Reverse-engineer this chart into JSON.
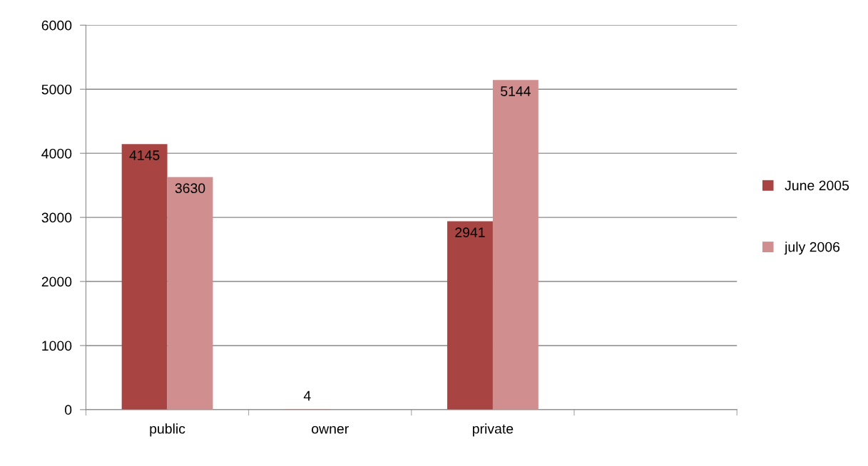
{
  "chart_data": {
    "type": "bar",
    "categories": [
      "public",
      "owner",
      "private",
      null
    ],
    "series": [
      {
        "name": "June 2005",
        "color": "#a84442",
        "values": [
          4145,
          4,
          2941,
          null
        ]
      },
      {
        "name": "july 2006",
        "color": "#d08f8e",
        "values": [
          3630,
          null,
          5144,
          null
        ]
      }
    ],
    "ylim": [
      0,
      6000
    ],
    "yticks": [
      0,
      1000,
      2000,
      3000,
      4000,
      5000,
      6000
    ],
    "grid": "y",
    "legend": "right",
    "data_labels": true
  }
}
